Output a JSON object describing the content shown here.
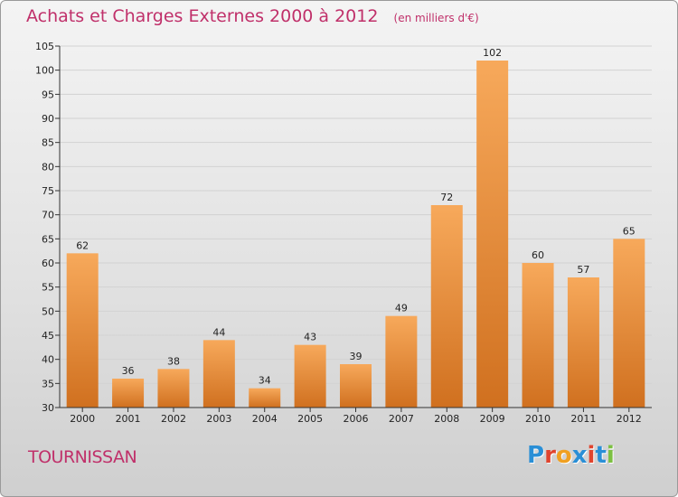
{
  "header": {
    "title": "Achats et Charges Externes 2000 à 2012",
    "unit": "(en milliers d'€)"
  },
  "footer": {
    "place": "TOURNISSAN",
    "logo_letters": [
      "P",
      "r",
      "o",
      "x",
      "i",
      "t",
      "i"
    ],
    "logo_colors": [
      "#2a8fd6",
      "#e0442e",
      "#f0a021",
      "#2a8fd6",
      "#e0442e",
      "#2a8fd6",
      "#7cc042"
    ]
  },
  "colors": {
    "bar_top": "#f7a95b",
    "bar_bottom": "#d0701f",
    "title": "#c0306a"
  },
  "chart_data": {
    "type": "bar",
    "categories": [
      "2000",
      "2001",
      "2002",
      "2003",
      "2004",
      "2005",
      "2006",
      "2007",
      "2008",
      "2009",
      "2010",
      "2011",
      "2012"
    ],
    "values": [
      62,
      36,
      38,
      44,
      34,
      43,
      39,
      49,
      72,
      102,
      60,
      57,
      65
    ],
    "ylim": [
      30,
      105
    ],
    "yticks": [
      30,
      35,
      40,
      45,
      50,
      55,
      60,
      65,
      70,
      75,
      80,
      85,
      90,
      95,
      100,
      105
    ],
    "grid": true,
    "data_labels": true
  }
}
